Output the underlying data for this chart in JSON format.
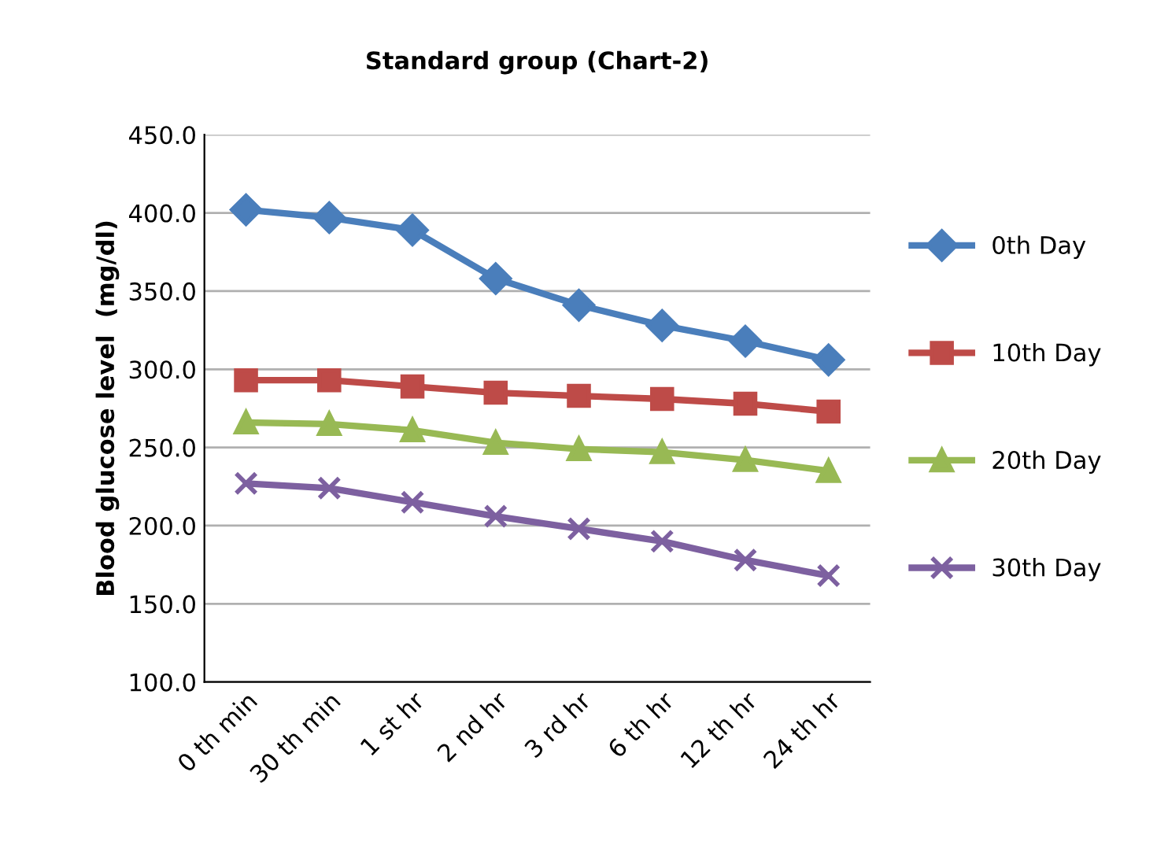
{
  "chart_data": {
    "type": "line",
    "title": "Standard group (Chart-2)",
    "ylabel": "Blood glucose level  (mg/dl)",
    "categories": [
      "0 th min",
      "30 th min",
      "1 st hr",
      "2 nd hr",
      "3 rd hr",
      "6 th hr",
      "12 th hr",
      "24 th hr"
    ],
    "series": [
      {
        "name": "0th Day",
        "color": "#4a7ebb",
        "marker": "diamond",
        "values": [
          402,
          397,
          389,
          358,
          341,
          328,
          318,
          306
        ]
      },
      {
        "name": "10th Day",
        "color": "#be4b48",
        "marker": "square",
        "values": [
          293,
          293,
          289,
          285,
          283,
          281,
          278,
          273
        ]
      },
      {
        "name": "20th Day",
        "color": "#98b954",
        "marker": "triangle",
        "values": [
          266,
          265,
          261,
          253,
          249,
          247,
          242,
          235
        ]
      },
      {
        "name": "30th Day",
        "color": "#7d60a0",
        "marker": "cross",
        "values": [
          227,
          224,
          215,
          206,
          198,
          190,
          178,
          168
        ]
      }
    ],
    "ylim": [
      100,
      450
    ],
    "yticks": [
      {
        "value": 100,
        "label": "100.0"
      },
      {
        "value": 150,
        "label": "150.0"
      },
      {
        "value": 200,
        "label": "200.0"
      },
      {
        "value": 250,
        "label": "250.0"
      },
      {
        "value": 300,
        "label": "300.0"
      },
      {
        "value": 350,
        "label": "350.0"
      },
      {
        "value": 400,
        "label": "400.0"
      },
      {
        "value": 450,
        "label": "450.0"
      }
    ],
    "grid": "y",
    "legend": "right"
  }
}
